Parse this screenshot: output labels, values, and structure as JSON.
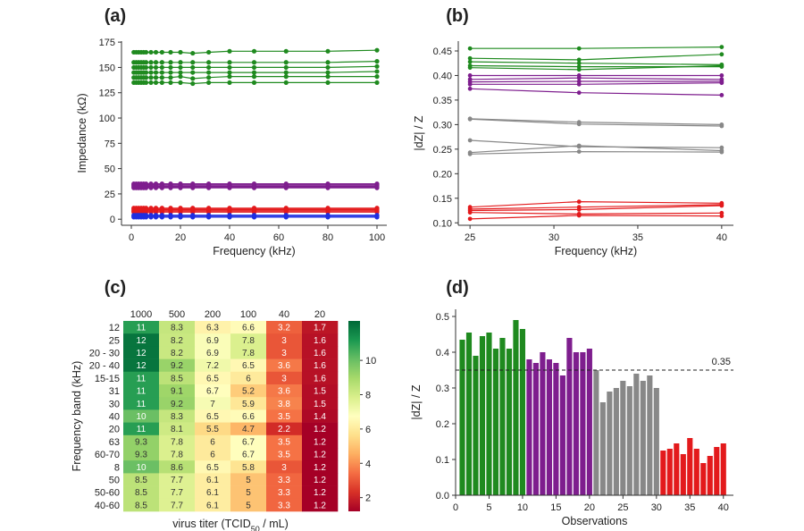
{
  "chart_data": [
    {
      "id": "a",
      "panel_label": "(a)",
      "type": "line",
      "xlabel": "Frequency (kHz)",
      "ylabel": "Impedance (kΩ)",
      "xlim": [
        -4,
        104
      ],
      "ylim": [
        -6,
        176
      ],
      "xticks": [
        0,
        20,
        40,
        60,
        80,
        100
      ],
      "yticks": [
        0,
        25,
        50,
        75,
        100,
        125,
        150,
        175
      ],
      "x": [
        1,
        2,
        3,
        4,
        5,
        6,
        8,
        10,
        12.5,
        16,
        20,
        25,
        31.5,
        40,
        50,
        63,
        80,
        100
      ],
      "groups": [
        {
          "color": "#1f8a1f",
          "series": [
            [
              165,
              165,
              165,
              165,
              165,
              165,
              165,
              165,
              165,
              165,
              165,
              164,
              165,
              166,
              166,
              166,
              166,
              167
            ],
            [
              155,
              155,
              155,
              155,
              155,
              155,
              155,
              155,
              155,
              155,
              155,
              155,
              155,
              155,
              155,
              155,
              155,
              156
            ],
            [
              150,
              150,
              150,
              150,
              150,
              150,
              150,
              150,
              150,
              150,
              150,
              150,
              150,
              150,
              150,
              150,
              150,
              151
            ],
            [
              145,
              145,
              145,
              145,
              145,
              145,
              145,
              145,
              145,
              145,
              145,
              145,
              145,
              145,
              145,
              145,
              145,
              146
            ],
            [
              140,
              140,
              140,
              140,
              140,
              140,
              140,
              140,
              140,
              140,
              141,
              139,
              140,
              141,
              141,
              141,
              141,
              141
            ],
            [
              135,
              135,
              135,
              135,
              135,
              135,
              135,
              135,
              135,
              135,
              135,
              134,
              135,
              135,
              135,
              135,
              135,
              135
            ]
          ]
        },
        {
          "color": "#7e1e8e",
          "series": [
            [
              35,
              35,
              35,
              35,
              35,
              35,
              35,
              35,
              35,
              35,
              35,
              35,
              35,
              35,
              35,
              35,
              35,
              35
            ],
            [
              34,
              34,
              34,
              34,
              34,
              34,
              34,
              34,
              34,
              34,
              34,
              34,
              34,
              34,
              34,
              34,
              34,
              34
            ],
            [
              33,
              33,
              33,
              33,
              33,
              33,
              33,
              33,
              33,
              33,
              33,
              33,
              33,
              33,
              33,
              33,
              33,
              33
            ],
            [
              32,
              32,
              32,
              32,
              32,
              32,
              32,
              32,
              32,
              32,
              32,
              32,
              32,
              32,
              32,
              32,
              32,
              32
            ],
            [
              31,
              31,
              31,
              31,
              31,
              31,
              31,
              31,
              31,
              31,
              31,
              31,
              31,
              31,
              31,
              31,
              31,
              31
            ]
          ]
        },
        {
          "color": "#e31a1c",
          "series": [
            [
              11,
              11,
              11,
              11,
              11,
              11,
              11,
              11,
              11,
              11,
              11,
              11,
              11,
              11,
              11,
              11,
              11,
              11
            ],
            [
              10,
              10,
              10,
              10,
              10,
              10,
              10,
              10,
              10,
              10,
              10,
              10,
              10,
              10,
              10,
              10,
              10,
              10
            ],
            [
              9,
              9,
              9,
              9,
              9,
              9,
              9,
              9,
              9,
              9,
              9,
              9,
              9,
              9,
              9,
              9,
              9,
              9
            ],
            [
              8,
              8,
              8,
              8,
              8,
              8,
              8,
              8,
              8,
              8,
              8,
              8,
              8,
              8,
              8,
              8,
              8,
              8
            ],
            [
              7,
              7,
              7,
              7,
              7,
              7,
              7,
              7,
              7,
              7,
              7,
              7,
              7,
              7,
              7,
              7,
              7,
              7
            ]
          ]
        },
        {
          "color": "#1f2ee0",
          "series": [
            [
              4,
              4,
              4,
              4,
              4,
              4,
              4,
              4,
              4,
              4,
              4,
              4,
              4,
              4,
              4,
              4,
              4,
              4
            ],
            [
              3,
              3,
              3,
              3,
              3,
              3,
              3,
              3,
              3,
              3,
              3,
              3,
              3,
              3,
              3,
              3,
              3,
              3
            ],
            [
              2,
              2,
              2,
              2,
              2,
              2,
              2,
              2,
              2,
              2,
              2,
              2,
              2,
              2,
              2,
              2,
              2,
              2
            ]
          ]
        }
      ]
    },
    {
      "id": "b",
      "panel_label": "(b)",
      "type": "line",
      "xlabel": "Frequency (kHz)",
      "ylabel": "|dZ| / Z",
      "xlim": [
        24.3,
        40.7
      ],
      "ylim": [
        0.095,
        0.47
      ],
      "xticks": [
        25,
        30,
        35,
        40
      ],
      "yticks": [
        0.1,
        0.15,
        0.2,
        0.25,
        0.3,
        0.35,
        0.4,
        0.45
      ],
      "ytick_labels": [
        "0.10",
        "0.15",
        "0.20",
        "0.25",
        "0.30",
        "0.35",
        "0.40",
        "0.45"
      ],
      "x": [
        25,
        31.5,
        40
      ],
      "groups": [
        {
          "color": "#1f8a1f",
          "series": [
            [
              0.455,
              0.455,
              0.458
            ],
            [
              0.435,
              0.432,
              0.443
            ],
            [
              0.428,
              0.425,
              0.422
            ],
            [
              0.42,
              0.418,
              0.418
            ],
            [
              0.416,
              0.412,
              0.42
            ]
          ]
        },
        {
          "color": "#7e1e8e",
          "series": [
            [
              0.4,
              0.4,
              0.4
            ],
            [
              0.392,
              0.395,
              0.392
            ],
            [
              0.387,
              0.388,
              0.388
            ],
            [
              0.382,
              0.382,
              0.385
            ],
            [
              0.373,
              0.365,
              0.36
            ]
          ]
        },
        {
          "color": "#888888",
          "series": [
            [
              0.312,
              0.305,
              0.3
            ],
            [
              0.311,
              0.301,
              0.297
            ],
            [
              0.268,
              0.255,
              0.253
            ],
            [
              0.243,
              0.257,
              0.247
            ],
            [
              0.24,
              0.245,
              0.244
            ]
          ]
        },
        {
          "color": "#e31a1c",
          "series": [
            [
              0.132,
              0.143,
              0.14
            ],
            [
              0.128,
              0.132,
              0.137
            ],
            [
              0.125,
              0.127,
              0.135
            ],
            [
              0.121,
              0.118,
              0.12
            ],
            [
              0.108,
              0.115,
              0.114
            ]
          ]
        }
      ]
    },
    {
      "id": "c",
      "panel_label": "(c)",
      "type": "heatmap",
      "xlabel_prefix": "virus titer (TCID",
      "xlabel_sub": "50",
      "xlabel_suffix": " / mL)",
      "ylabel": "Frequency band (kHz)",
      "columns": [
        "1000",
        "500",
        "200",
        "100",
        "40",
        "20"
      ],
      "rows": [
        "12",
        "25",
        "20 - 30",
        "20 - 40",
        "15-15",
        "31",
        "30",
        "40",
        "20",
        "63",
        "60-70",
        "8",
        "50",
        "50-60",
        "40-60"
      ],
      "values": [
        [
          11,
          8.3,
          6.3,
          6.6,
          3.2,
          1.7
        ],
        [
          12,
          8.2,
          6.9,
          7.8,
          3,
          1.6
        ],
        [
          12,
          8.2,
          6.9,
          7.8,
          3,
          1.6
        ],
        [
          12,
          9.2,
          7.2,
          6.5,
          3.6,
          1.6
        ],
        [
          11,
          8.5,
          6.5,
          6,
          3,
          1.6
        ],
        [
          11,
          9.1,
          6.7,
          5.2,
          3.6,
          1.5
        ],
        [
          11,
          9.2,
          7,
          5.9,
          3.8,
          1.5
        ],
        [
          10,
          8.3,
          6.5,
          6.6,
          3.5,
          1.4
        ],
        [
          11,
          8.1,
          5.5,
          4.7,
          2.2,
          1.2
        ],
        [
          9.3,
          7.8,
          6,
          6.7,
          3.5,
          1.2
        ],
        [
          9.3,
          7.8,
          6,
          6.7,
          3.5,
          1.2
        ],
        [
          10,
          8.6,
          6.5,
          5.8,
          3,
          1.2
        ],
        [
          8.5,
          7.7,
          6.1,
          5,
          3.3,
          1.2
        ],
        [
          8.5,
          7.7,
          6.1,
          5,
          3.3,
          1.2
        ],
        [
          8.5,
          7.7,
          6.1,
          5,
          3.3,
          1.2
        ]
      ],
      "colorbar": {
        "min": 1.2,
        "max": 12.3,
        "ticks": [
          2,
          4,
          6,
          8,
          10
        ],
        "colormap": "RdYlGn"
      }
    },
    {
      "id": "d",
      "panel_label": "(d)",
      "type": "bar",
      "xlabel": "Observations",
      "ylabel": "|dZ| / Z",
      "xlim": [
        0,
        41.5
      ],
      "ylim": [
        0,
        0.52
      ],
      "xticks": [
        0,
        5,
        10,
        15,
        20,
        25,
        30,
        35,
        40
      ],
      "yticks": [
        0.0,
        0.1,
        0.2,
        0.3,
        0.4,
        0.5
      ],
      "ytick_labels": [
        "0.0",
        "0.1",
        "0.2",
        "0.3",
        "0.4",
        "0.5"
      ],
      "threshold": 0.35,
      "threshold_label": "0.35",
      "groups": [
        {
          "color": "#1f8a1f",
          "x_start": 1,
          "values": [
            0.435,
            0.455,
            0.39,
            0.445,
            0.455,
            0.41,
            0.44,
            0.41,
            0.49,
            0.465
          ]
        },
        {
          "color": "#7e1e8e",
          "x_start": 11,
          "values": [
            0.38,
            0.37,
            0.4,
            0.38,
            0.37,
            0.335,
            0.44,
            0.4,
            0.4,
            0.41
          ]
        },
        {
          "color": "#888888",
          "x_start": 21,
          "values": [
            0.35,
            0.26,
            0.29,
            0.3,
            0.32,
            0.305,
            0.34,
            0.32,
            0.335,
            0.3
          ]
        },
        {
          "color": "#e31a1c",
          "x_start": 31,
          "values": [
            0.125,
            0.13,
            0.145,
            0.115,
            0.16,
            0.13,
            0.09,
            0.11,
            0.135,
            0.145
          ]
        }
      ]
    }
  ]
}
